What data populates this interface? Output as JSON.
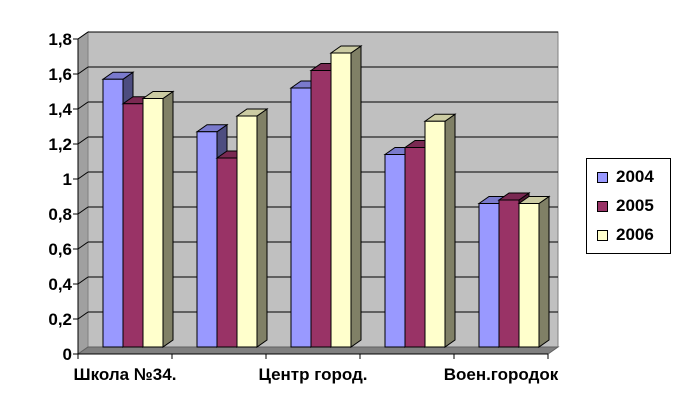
{
  "chart_data": {
    "type": "bar",
    "title": "",
    "xlabel": "",
    "ylabel": "",
    "ylim": [
      0,
      1.8
    ],
    "y_ticks": [
      "0",
      "0,2",
      "0,4",
      "0,6",
      "0,8",
      "1",
      "1,2",
      "1,4",
      "1,6",
      "1,8"
    ],
    "categories": [
      "Школа №34.",
      "",
      "Центр город.",
      "",
      "Воен.городок"
    ],
    "x_tick_labels_shown": [
      "Школа №34.",
      "Центр город.",
      "Воен.городок"
    ],
    "series": [
      {
        "name": "2004",
        "color": "#9999ff",
        "values": [
          1.53,
          1.23,
          1.48,
          1.1,
          0.82
        ]
      },
      {
        "name": "2005",
        "color": "#993366",
        "values": [
          1.39,
          1.08,
          1.58,
          1.14,
          0.84
        ]
      },
      {
        "name": "2006",
        "color": "#ffffcc",
        "values": [
          1.42,
          1.32,
          1.68,
          1.29,
          0.82
        ]
      }
    ],
    "grid": true,
    "legend_position": "right",
    "style": "3d-clustered-column",
    "plot_background": "#c0c0c0"
  }
}
